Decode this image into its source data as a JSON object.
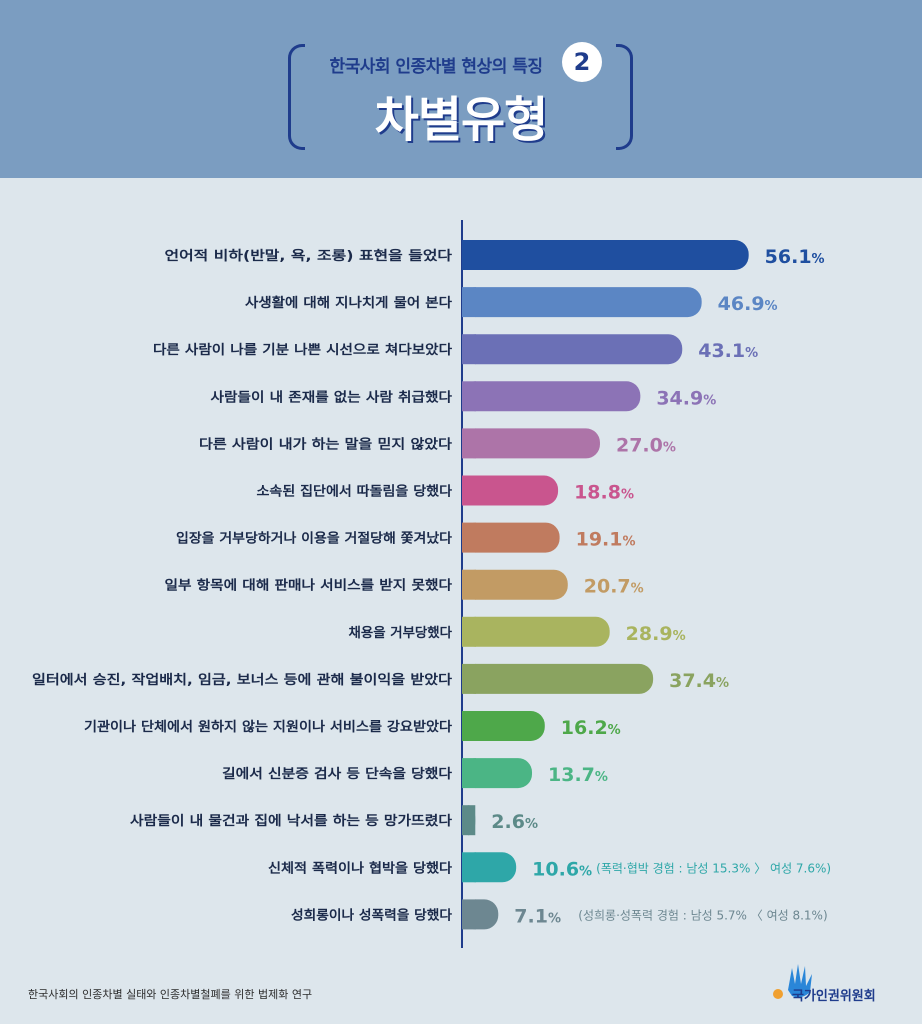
{
  "header": {
    "subtitle": "한국사회 인종차별 현상의 특징",
    "number": "2",
    "title": "차별유형"
  },
  "chart_data": {
    "type": "bar",
    "orientation": "horizontal",
    "categories": [
      "언어적 비하(반말, 욕, 조롱) 표현을 들었다",
      "사생활에 대해 지나치게 물어 본다",
      "다른 사람이 나를 기분 나쁜 시선으로 쳐다보았다",
      "사람들이 내 존재를 없는 사람 취급했다",
      "다른 사람이 내가 하는 말을 믿지 않았다",
      "소속된 집단에서 따돌림을 당했다",
      "입장을 거부당하거나 이용을 거절당해 쫓겨났다",
      "일부 항목에 대해 판매나 서비스를 받지 못했다",
      "채용을 거부당했다",
      "일터에서 승진, 작업배치, 임금, 보너스 등에 관해 불이익을 받았다",
      "기관이나 단체에서 원하지 않는 지원이나 서비스를 강요받았다",
      "길에서 신분증 검사 등 단속을 당했다",
      "사람들이 내 물건과 집에 낙서를 하는 등 망가뜨렸다",
      "신체적 폭력이나 협박을 당했다",
      "성희롱이나 성폭력을 당했다"
    ],
    "values": [
      56.1,
      46.9,
      43.1,
      34.9,
      27.0,
      18.8,
      19.1,
      20.7,
      28.9,
      37.4,
      16.2,
      13.7,
      2.6,
      10.6,
      7.1
    ],
    "value_labels": [
      "56.1",
      "46.9",
      "43.1",
      "34.9",
      "27.0",
      "18.8",
      "19.1",
      "20.7",
      "28.9",
      "37.4",
      "16.2",
      "13.7",
      "2.6",
      "10.6",
      "7.1"
    ],
    "unit": "%",
    "colors": [
      "#1f4fa0",
      "#5b86c4",
      "#6b70b6",
      "#8c73b6",
      "#ad74a8",
      "#c9558e",
      "#c07b5f",
      "#c29b64",
      "#a9b45f",
      "#8aa360",
      "#4ea84a",
      "#4bb585",
      "#5c8a88",
      "#2ea7a8",
      "#6d8791"
    ],
    "annotations": [
      {
        "index": 13,
        "text": "(폭력·협박 경험 : 남성 15.3% 〉 여성 7.6%)",
        "color": "#2ea7a8"
      },
      {
        "index": 14,
        "text": "(성희롱·성폭력 경험 : 남성 5.7% 〈 여성 8.1%)",
        "color": "#6d8791"
      }
    ],
    "xlim": [
      0,
      100
    ]
  },
  "footer": {
    "source": "한국사회의 인종차별 실태와 인종차별철폐를 위한 법제화 연구",
    "logo_text": "국가인권위원회"
  }
}
